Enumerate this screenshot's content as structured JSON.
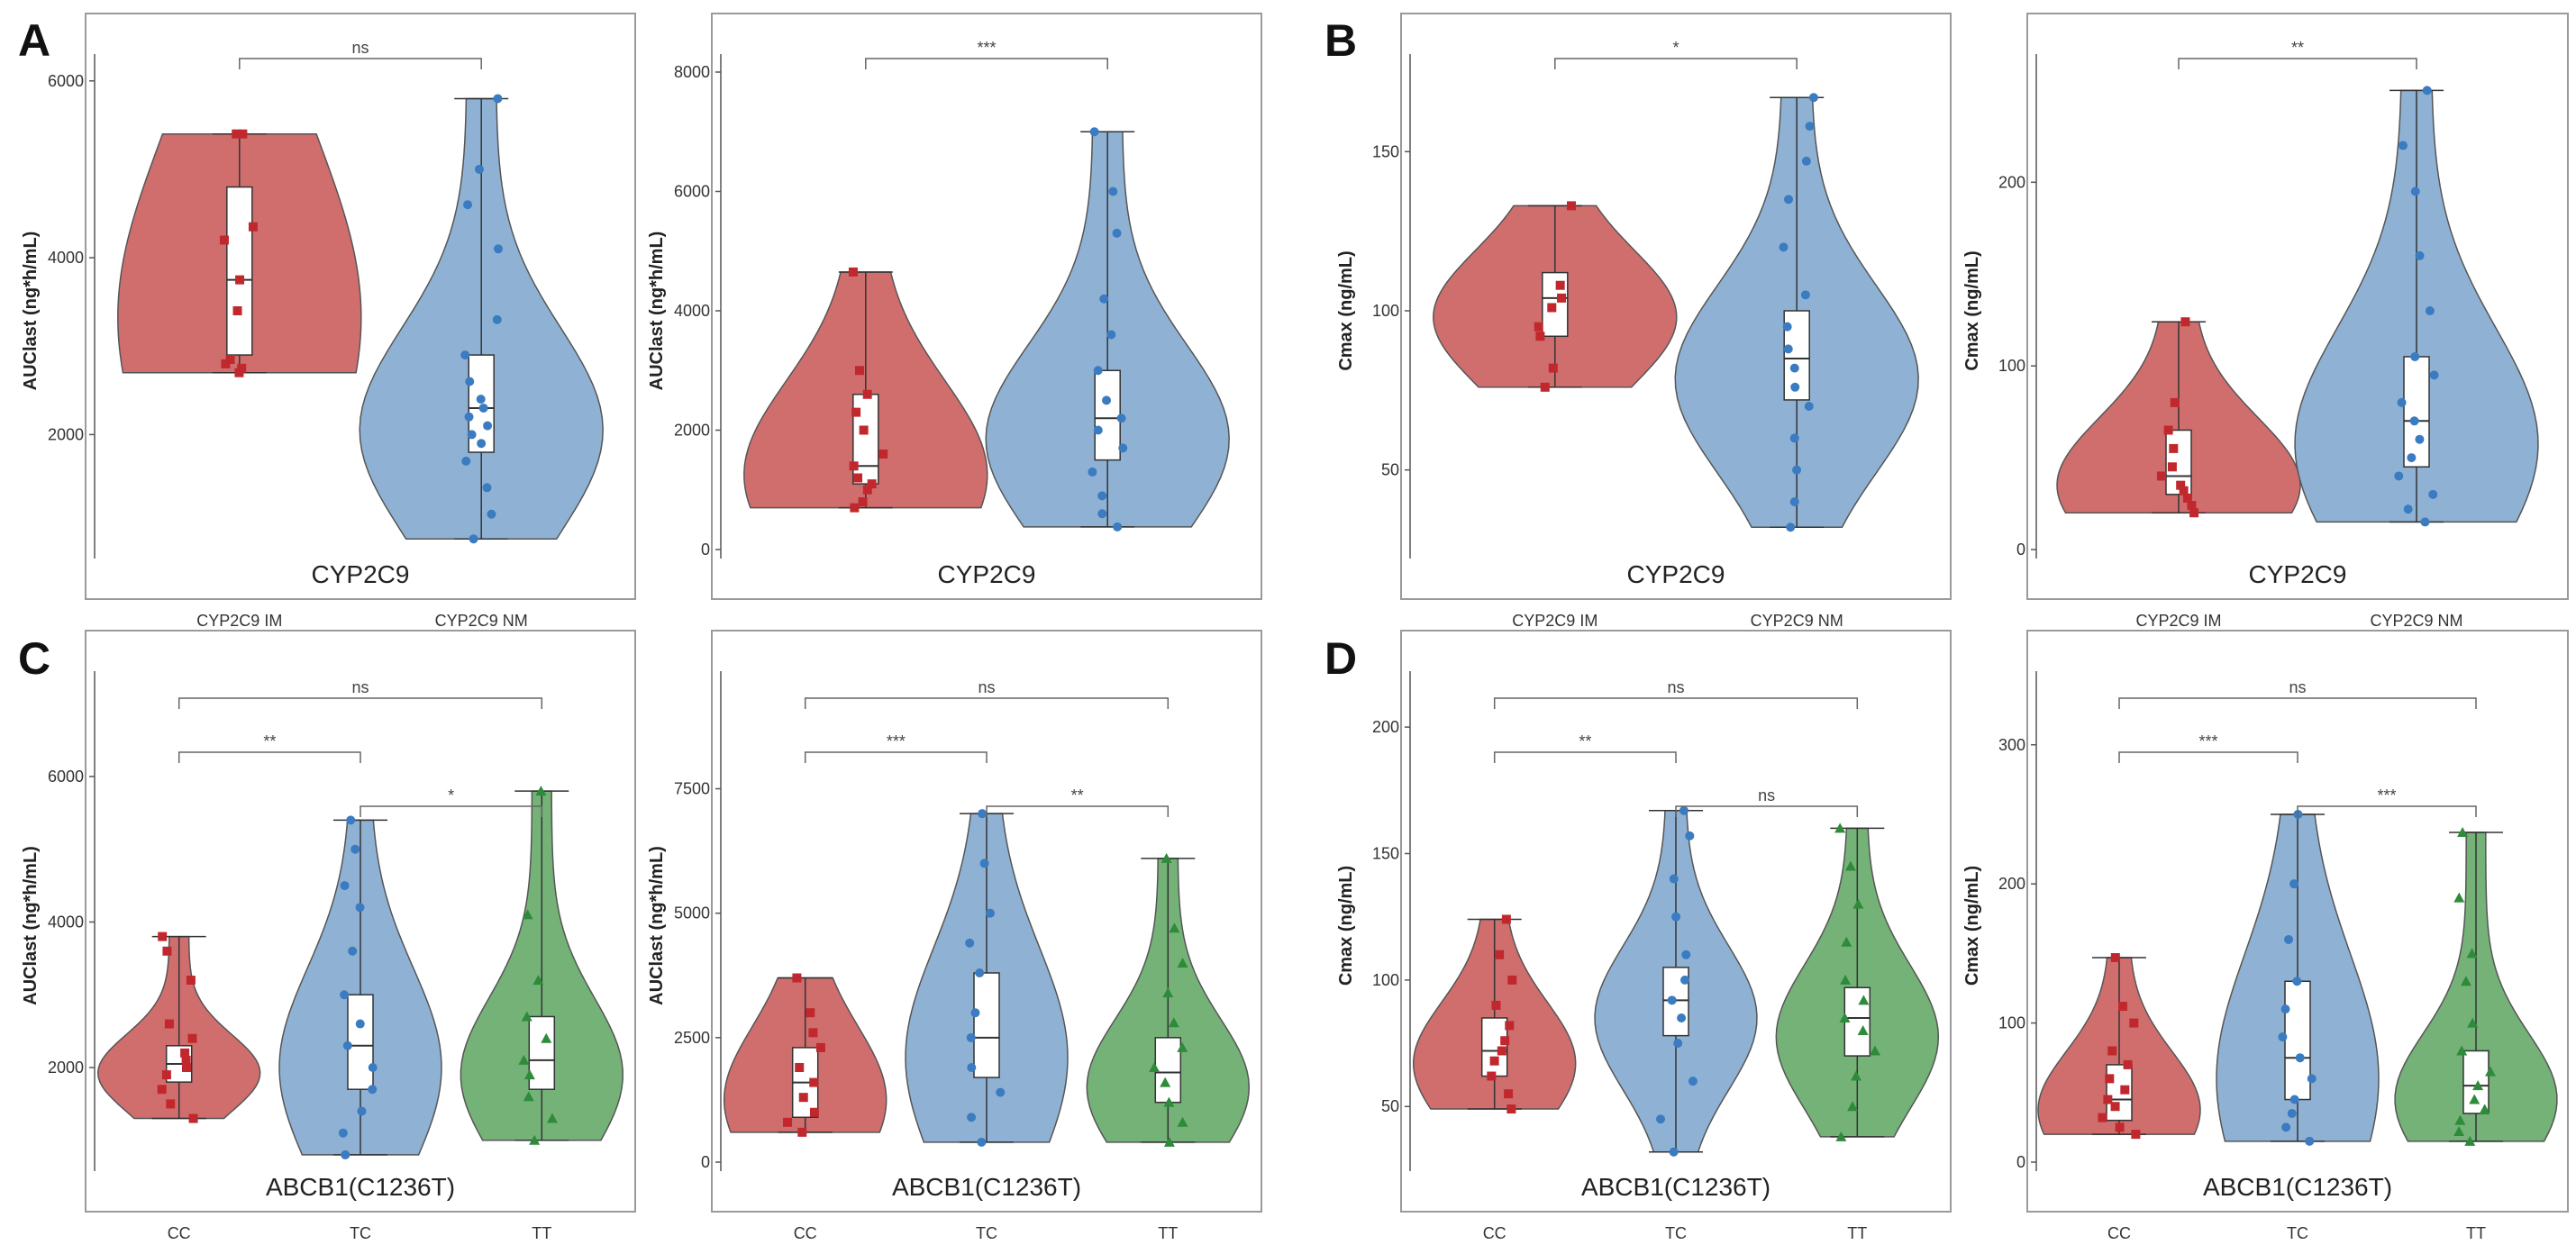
{
  "panel_letters": [
    "A",
    "B",
    "C",
    "D"
  ],
  "colors": {
    "red_fill": "#d06e6e",
    "red_point": "#c0282d",
    "blue_fill": "#8fb2d4",
    "blue_point": "#3a7bc1",
    "green_fill": "#74b277",
    "green_point": "#2e8b3a"
  },
  "chart_data": [
    {
      "type": "violin",
      "panel": "A",
      "xtitle": "CYP2C9",
      "ylabel": "AUClast (ng*h/mL)",
      "categories": [
        "CYP2C9 IM",
        "CYP2C9 NM"
      ],
      "yticks": [
        2000,
        4000,
        6000
      ],
      "ylim": [
        700,
        6100
      ],
      "groups": [
        {
          "name": "CYP2C9 IM",
          "min": 2700,
          "q1": 2900,
          "median": 3750,
          "q3": 4800,
          "max": 5400,
          "points": [
            2700,
            2750,
            2800,
            2850,
            3400,
            3750,
            4200,
            4350,
            5400,
            5400
          ]
        },
        {
          "name": "CYP2C9 NM",
          "min": 820,
          "q1": 1800,
          "median": 2300,
          "q3": 2900,
          "max": 5800,
          "points": [
            820,
            1100,
            1400,
            1700,
            1900,
            2000,
            2100,
            2200,
            2300,
            2400,
            2600,
            2900,
            3300,
            4100,
            4600,
            5000,
            5800
          ]
        }
      ],
      "comparisons": [
        {
          "from": 0,
          "to": 1,
          "label": "ns"
        }
      ]
    },
    {
      "type": "violin",
      "panel": "A",
      "xtitle": "CYP2C9",
      "ylabel": "AUClast (ng*h/mL)",
      "categories": [
        "",
        ""
      ],
      "yticks": [
        0,
        2000,
        4000,
        6000,
        8000
      ],
      "ylim": [
        0,
        8000
      ],
      "groups": [
        {
          "name": "",
          "min": 700,
          "q1": 1100,
          "median": 1400,
          "q3": 2600,
          "max": 4650,
          "points": [
            700,
            800,
            1000,
            1100,
            1200,
            1400,
            1600,
            2000,
            2300,
            2600,
            3000,
            4650
          ]
        },
        {
          "name": "",
          "min": 380,
          "q1": 1500,
          "median": 2200,
          "q3": 3000,
          "max": 7000,
          "points": [
            380,
            600,
            900,
            1300,
            1700,
            2000,
            2200,
            2500,
            3000,
            3600,
            4200,
            5300,
            6000,
            7000
          ]
        }
      ],
      "comparisons": [
        {
          "from": 0,
          "to": 1,
          "label": "***"
        }
      ]
    },
    {
      "type": "violin",
      "panel": "B",
      "xtitle": "CYP2C9",
      "ylabel": "Cmax (ng/mL)",
      "categories": [
        "CYP2C9 IM",
        "CYP2C9 NM"
      ],
      "yticks": [
        50,
        100,
        150
      ],
      "ylim": [
        25,
        175
      ],
      "groups": [
        {
          "name": "CYP2C9 IM",
          "min": 76,
          "q1": 92,
          "median": 104,
          "q3": 112,
          "max": 133,
          "points": [
            76,
            82,
            92,
            95,
            101,
            104,
            108,
            133
          ]
        },
        {
          "name": "CYP2C9 NM",
          "min": 32,
          "q1": 72,
          "median": 85,
          "q3": 100,
          "max": 167,
          "points": [
            32,
            40,
            50,
            60,
            70,
            76,
            82,
            88,
            95,
            105,
            120,
            135,
            147,
            158,
            167
          ]
        }
      ],
      "comparisons": [
        {
          "from": 0,
          "to": 1,
          "label": "*"
        }
      ]
    },
    {
      "type": "violin",
      "panel": "B",
      "xtitle": "CYP2C9",
      "ylabel": "Cmax (ng/mL)",
      "categories": [
        "CYP2C9 IM",
        "CYP2C9 NM"
      ],
      "yticks": [
        0,
        100,
        200
      ],
      "ylim": [
        0,
        260
      ],
      "groups": [
        {
          "name": "CYP2C9 IM",
          "min": 20,
          "q1": 30,
          "median": 40,
          "q3": 65,
          "max": 124,
          "points": [
            20,
            24,
            28,
            32,
            35,
            40,
            45,
            55,
            65,
            80,
            124
          ]
        },
        {
          "name": "CYP2C9 NM",
          "min": 15,
          "q1": 45,
          "median": 70,
          "q3": 105,
          "max": 250,
          "points": [
            15,
            22,
            30,
            40,
            50,
            60,
            70,
            80,
            95,
            105,
            130,
            160,
            195,
            220,
            250
          ]
        }
      ],
      "comparisons": [
        {
          "from": 0,
          "to": 1,
          "label": "**"
        }
      ]
    },
    {
      "type": "violin",
      "panel": "C",
      "xtitle": "ABCB1(C1236T)",
      "ylabel": "AUClast (ng*h/mL)",
      "categories": [
        "CC",
        "TC",
        "TT"
      ],
      "yticks": [
        2000,
        4000,
        6000
      ],
      "ylim": [
        700,
        7200
      ],
      "groups": [
        {
          "name": "CC",
          "min": 1300,
          "q1": 1800,
          "median": 2050,
          "q3": 2300,
          "max": 3800,
          "points": [
            1300,
            1500,
            1700,
            1900,
            2000,
            2100,
            2200,
            2400,
            2600,
            3200,
            3600,
            3800
          ]
        },
        {
          "name": "TC",
          "min": 800,
          "q1": 1700,
          "median": 2300,
          "q3": 3000,
          "max": 5400,
          "points": [
            800,
            1100,
            1400,
            1700,
            2000,
            2300,
            2600,
            3000,
            3600,
            4200,
            4500,
            5000,
            5400
          ]
        },
        {
          "name": "TT",
          "min": 1000,
          "q1": 1700,
          "median": 2100,
          "q3": 2700,
          "max": 5800,
          "points": [
            1000,
            1300,
            1600,
            1900,
            2100,
            2400,
            2700,
            3200,
            4100,
            5800
          ]
        }
      ],
      "comparisons": [
        {
          "from": 0,
          "to": 1,
          "label": "**"
        },
        {
          "from": 1,
          "to": 2,
          "label": "*"
        },
        {
          "from": 0,
          "to": 2,
          "label": "ns"
        }
      ]
    },
    {
      "type": "violin",
      "panel": "C",
      "xtitle": "ABCB1(C1236T)",
      "ylabel": "AUClast (ng*h/mL)",
      "categories": [
        "CC",
        "TC",
        "TT"
      ],
      "yticks": [
        0,
        2500,
        5000,
        7500
      ],
      "ylim": [
        0,
        9500
      ],
      "groups": [
        {
          "name": "CC",
          "min": 600,
          "q1": 900,
          "median": 1600,
          "q3": 2300,
          "max": 3700,
          "points": [
            600,
            800,
            1000,
            1300,
            1600,
            1900,
            2300,
            2600,
            3000,
            3700
          ]
        },
        {
          "name": "TC",
          "min": 400,
          "q1": 1700,
          "median": 2500,
          "q3": 3800,
          "max": 7000,
          "points": [
            400,
            900,
            1400,
            1900,
            2500,
            3000,
            3800,
            4400,
            5000,
            6000,
            7000
          ]
        },
        {
          "name": "TT",
          "min": 400,
          "q1": 1200,
          "median": 1800,
          "q3": 2500,
          "max": 6100,
          "points": [
            400,
            800,
            1200,
            1600,
            1900,
            2300,
            2800,
            3400,
            4000,
            4700,
            6100
          ]
        }
      ],
      "comparisons": [
        {
          "from": 0,
          "to": 1,
          "label": "***"
        },
        {
          "from": 1,
          "to": 2,
          "label": "**"
        },
        {
          "from": 0,
          "to": 2,
          "label": "ns"
        }
      ]
    },
    {
      "type": "violin",
      "panel": "D",
      "xtitle": "ABCB1(C1236T)",
      "ylabel": "Cmax (ng/mL)",
      "categories": [
        "CC",
        "TC",
        "TT"
      ],
      "yticks": [
        50,
        100,
        150,
        200
      ],
      "ylim": [
        28,
        215
      ],
      "groups": [
        {
          "name": "CC",
          "min": 49,
          "q1": 62,
          "median": 72,
          "q3": 85,
          "max": 124,
          "points": [
            49,
            55,
            62,
            68,
            72,
            76,
            82,
            90,
            100,
            110,
            124
          ]
        },
        {
          "name": "TC",
          "min": 32,
          "q1": 78,
          "median": 92,
          "q3": 105,
          "max": 167,
          "points": [
            32,
            45,
            60,
            75,
            85,
            92,
            100,
            110,
            125,
            140,
            157,
            167
          ]
        },
        {
          "name": "TT",
          "min": 38,
          "q1": 70,
          "median": 85,
          "q3": 97,
          "max": 160,
          "points": [
            38,
            50,
            62,
            72,
            80,
            85,
            92,
            100,
            115,
            130,
            145,
            160
          ]
        }
      ],
      "comparisons": [
        {
          "from": 0,
          "to": 1,
          "label": "**"
        },
        {
          "from": 1,
          "to": 2,
          "label": "ns"
        },
        {
          "from": 0,
          "to": 2,
          "label": "ns"
        }
      ]
    },
    {
      "type": "violin",
      "panel": "D",
      "xtitle": "ABCB1(C1236T)",
      "ylabel": "Cmax (ng/mL)",
      "categories": [
        "CC",
        "TC",
        "TT"
      ],
      "yticks": [
        0,
        100,
        200,
        300
      ],
      "ylim": [
        0,
        340
      ],
      "groups": [
        {
          "name": "CC",
          "min": 20,
          "q1": 30,
          "median": 45,
          "q3": 70,
          "max": 147,
          "points": [
            20,
            25,
            32,
            40,
            45,
            52,
            60,
            70,
            80,
            100,
            112,
            147
          ]
        },
        {
          "name": "TC",
          "min": 15,
          "q1": 45,
          "median": 75,
          "q3": 130,
          "max": 250,
          "points": [
            15,
            25,
            35,
            45,
            60,
            75,
            90,
            110,
            130,
            160,
            200,
            250
          ]
        },
        {
          "name": "TT",
          "min": 15,
          "q1": 35,
          "median": 55,
          "q3": 80,
          "max": 237,
          "points": [
            15,
            22,
            30,
            38,
            45,
            55,
            65,
            80,
            100,
            130,
            150,
            190,
            237
          ]
        }
      ],
      "comparisons": [
        {
          "from": 0,
          "to": 1,
          "label": "***"
        },
        {
          "from": 1,
          "to": 2,
          "label": "***"
        },
        {
          "from": 0,
          "to": 2,
          "label": "ns"
        }
      ]
    }
  ]
}
